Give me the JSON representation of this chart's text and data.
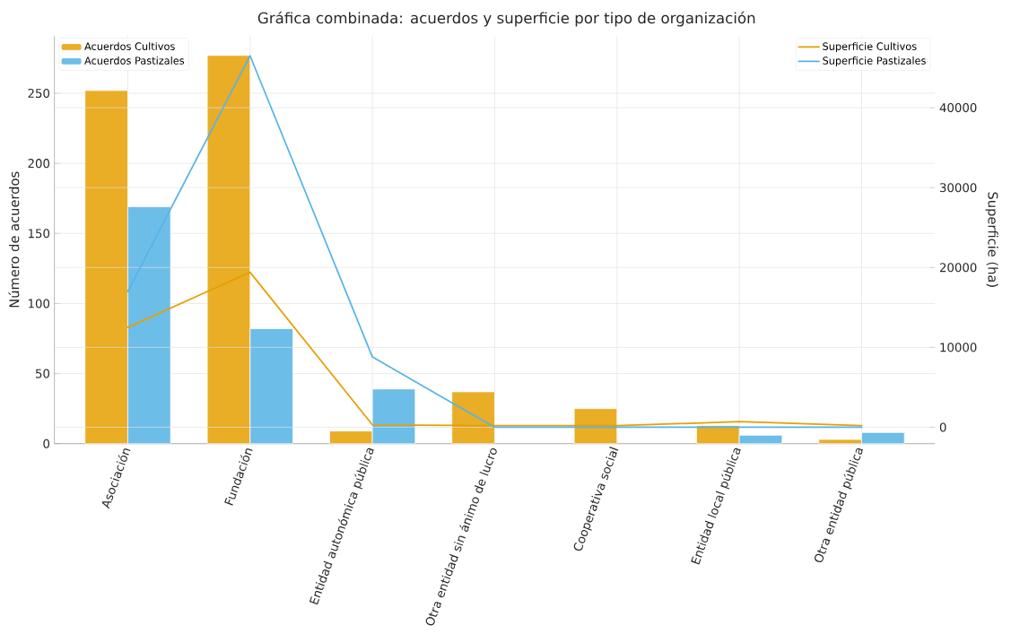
{
  "chart_data": {
    "type": "bar",
    "title": "Gráfica combinada: acuerdos y superficie por tipo de organización",
    "ylabel": "Número de acuerdos",
    "y2label": "Superficie (ha)",
    "categories": [
      "Asociación",
      "Fundación",
      "Entidad autonómica pública",
      "Otra entidad sin ánimo de lucro",
      "Cooperativa social",
      "Entidad local pública",
      "Otra entidad pública"
    ],
    "series": [
      {
        "name": "Acuerdos Cultivos",
        "color": "#e9ad26",
        "values": [
          252,
          277,
          9,
          37,
          25,
          13,
          3
        ]
      },
      {
        "name": "Acuerdos Pastizales",
        "color": "#6dbde9",
        "values": [
          169,
          82,
          39,
          0,
          0,
          6,
          8
        ]
      },
      {
        "name": "Superficie Cultivos",
        "type": "line",
        "axis": "y2",
        "color": "#e69f00",
        "values": [
          12500,
          19400,
          300,
          200,
          200,
          700,
          200
        ]
      },
      {
        "name": "Superficie Pastizales",
        "type": "line",
        "axis": "y2",
        "color": "#56b4e9",
        "values": [
          17000,
          46500,
          8800,
          0,
          0,
          0,
          0
        ]
      }
    ],
    "ylim": [
      0,
      291
    ],
    "yticks": [
      0,
      50,
      100,
      150,
      200,
      250
    ],
    "y2lim": [
      -2050,
      49000
    ],
    "y2ticks": [
      0,
      10000,
      20000,
      30000,
      40000
    ],
    "grid": true,
    "legend": "top left"
  }
}
